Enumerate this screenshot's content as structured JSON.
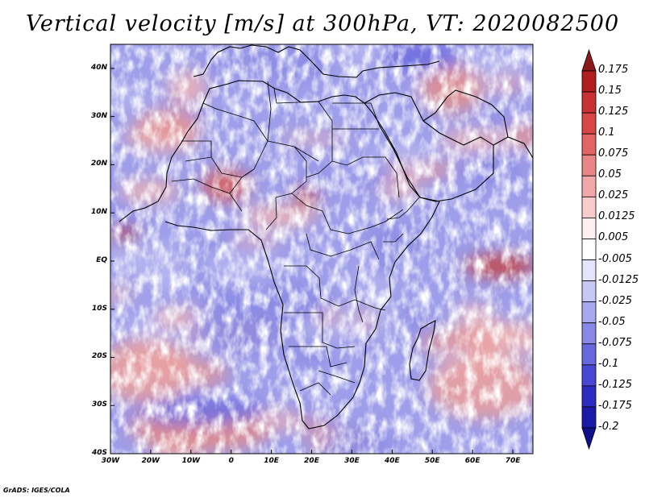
{
  "title": "Vertical velocity [m/s] at 300hPa, VT: 2020082500",
  "credit": "GrADS: IGES/COLA",
  "map": {
    "lat_labels": [
      "40N",
      "30N",
      "20N",
      "10N",
      "EQ",
      "10S",
      "20S",
      "30S",
      "40S"
    ],
    "lon_labels": [
      "30W",
      "20W",
      "10W",
      "0",
      "10E",
      "20E",
      "30E",
      "40E",
      "50E",
      "60E",
      "70E"
    ],
    "lat_range": [
      -40,
      45
    ],
    "lon_range": [
      -30,
      75
    ],
    "positive_color": "#d03a3a",
    "negative_color": "#4646e0"
  },
  "colorbar": {
    "labels": [
      "0.175",
      "0.15",
      "0.125",
      "0.1",
      "0.075",
      "0.05",
      "0.025",
      "0.0125",
      "0.005",
      "-0.005",
      "-0.0125",
      "-0.025",
      "-0.05",
      "-0.075",
      "-0.1",
      "-0.125",
      "-0.175",
      "-0.2"
    ],
    "colors": [
      "#8c1a1a",
      "#b01e1e",
      "#c93232",
      "#d84646",
      "#e26464",
      "#ea8585",
      "#f2a8a8",
      "#f8cccc",
      "#fdf0f0",
      "#ffffff",
      "#e4e4fa",
      "#c8c8f4",
      "#a8a8ee",
      "#8888e6",
      "#6868de",
      "#4848d4",
      "#2c2cc0",
      "#1a1aa8",
      "#10108c"
    ]
  }
}
